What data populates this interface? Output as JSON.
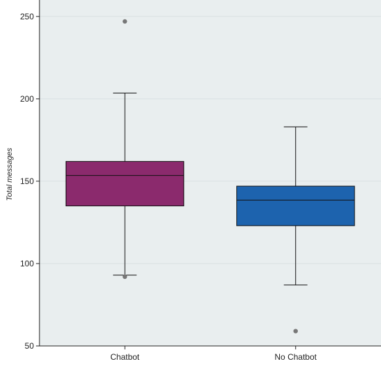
{
  "chart_data": {
    "type": "box",
    "title": "",
    "xlabel": "",
    "ylabel": "Total messages",
    "ylim": [
      50,
      260
    ],
    "yticks": [
      50,
      100,
      150,
      200,
      250
    ],
    "grid": true,
    "categories": [
      "Chatbot",
      "No Chatbot"
    ],
    "boxes": [
      {
        "category": "Chatbot",
        "whisker_low": 93,
        "q1": 135,
        "median": 153.5,
        "q3": 162,
        "whisker_high": 203.5,
        "outliers": [
          92,
          247
        ],
        "color": "#8b2a6d"
      },
      {
        "category": "No Chatbot",
        "whisker_low": 87,
        "q1": 123,
        "median": 138.5,
        "q3": 147,
        "whisker_high": 183,
        "outliers": [
          59
        ],
        "color": "#1d63ae"
      }
    ],
    "colors": {
      "plot_background": "#e9eeef",
      "grid": "#d9e0e2",
      "outlier": "#777777",
      "line": "#111111"
    }
  }
}
